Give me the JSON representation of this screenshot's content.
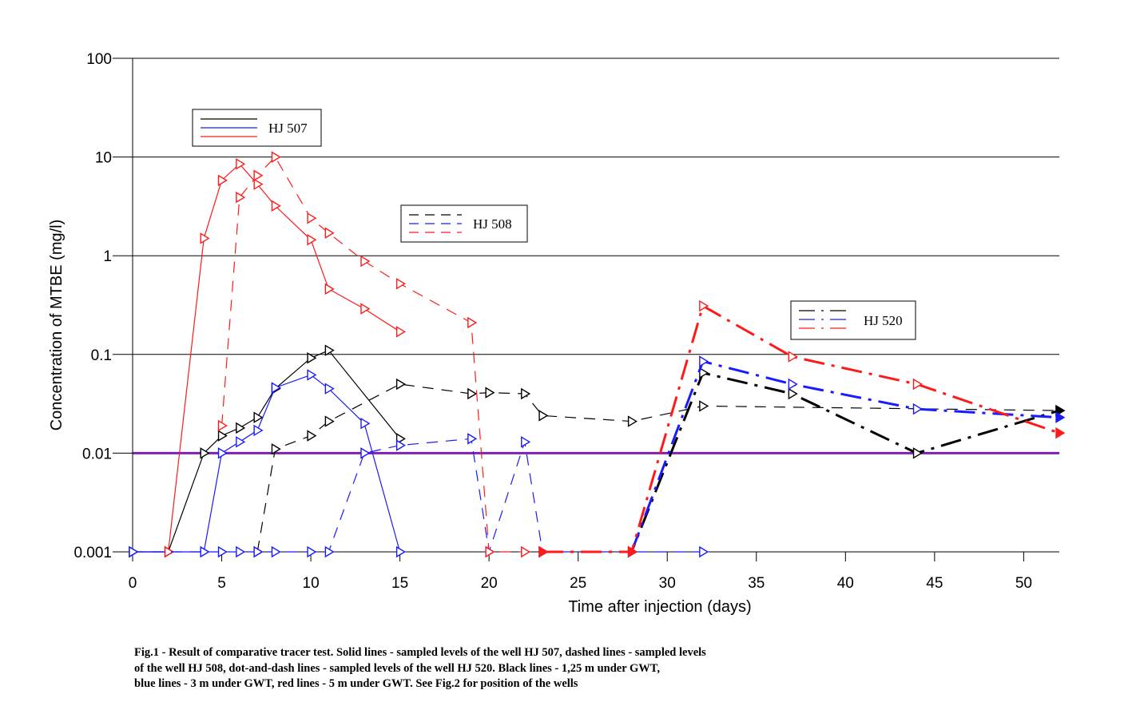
{
  "chart_data": {
    "type": "line",
    "ylabel": "Concentration of MTBE (mg/l)",
    "xlabel": "Time after injection (days)",
    "xlim": [
      0,
      52
    ],
    "ylim": [
      0.001,
      100
    ],
    "y_scale": "log",
    "x_ticks": [
      "0",
      "5",
      "10",
      "15",
      "20",
      "25",
      "30",
      "35",
      "40",
      "45",
      "50"
    ],
    "y_ticks": [
      "0.001",
      "0.01",
      "0.1",
      "1",
      "10",
      "100"
    ],
    "grid": "horizontal",
    "reference_line": {
      "y": 0.01,
      "color": "#7f1fb4"
    },
    "colors": {
      "black": "#000000",
      "blue": "#1a1aff",
      "red": "#ff1a1a",
      "purple": "#7f1fb4"
    },
    "legends": [
      {
        "label": "HJ 507"
      },
      {
        "label": "HJ 508"
      },
      {
        "label": "HJ 520"
      }
    ],
    "series": [
      {
        "well": "HJ 507",
        "level": "black",
        "style": "solid",
        "points": [
          [
            0,
            0.001
          ],
          [
            2,
            0.001
          ],
          [
            4,
            0.01
          ],
          [
            5,
            0.015
          ],
          [
            6,
            0.018
          ],
          [
            7,
            0.023
          ],
          [
            8,
            0.045
          ],
          [
            10,
            0.092
          ],
          [
            11,
            0.11
          ],
          [
            15,
            0.014
          ]
        ]
      },
      {
        "well": "HJ 507",
        "level": "blue",
        "style": "solid",
        "points": [
          [
            0,
            0.001
          ],
          [
            2,
            0.001
          ],
          [
            4,
            0.001
          ],
          [
            5,
            0.01
          ],
          [
            6,
            0.013
          ],
          [
            7,
            0.017
          ],
          [
            8,
            0.046
          ],
          [
            10,
            0.062
          ],
          [
            11,
            0.045
          ],
          [
            13,
            0.02
          ],
          [
            15,
            0.001
          ]
        ]
      },
      {
        "well": "HJ 507",
        "level": "red",
        "style": "solid",
        "points": [
          [
            2,
            0.001
          ],
          [
            4,
            1.5
          ],
          [
            5,
            5.8
          ],
          [
            6,
            8.5
          ],
          [
            7,
            5.3
          ],
          [
            8,
            3.2
          ],
          [
            10,
            1.45
          ],
          [
            11,
            0.46
          ],
          [
            13,
            0.29
          ],
          [
            15,
            0.17
          ]
        ]
      },
      {
        "well": "HJ 508",
        "level": "black",
        "style": "dashed",
        "points": [
          [
            7,
            0.001
          ],
          [
            8,
            0.011
          ],
          [
            10,
            0.015
          ],
          [
            11,
            0.021
          ],
          [
            15,
            0.05
          ],
          [
            19,
            0.04
          ],
          [
            20,
            0.041
          ],
          [
            22,
            0.04
          ],
          [
            23,
            0.024
          ],
          [
            28,
            0.021
          ],
          [
            32,
            0.03
          ],
          [
            52,
            0.027
          ]
        ]
      },
      {
        "well": "HJ 508",
        "level": "blue",
        "style": "dashed",
        "points": [
          [
            0,
            0.001
          ],
          [
            4,
            0.001
          ],
          [
            5,
            0.001
          ],
          [
            6,
            0.001
          ],
          [
            7,
            0.001
          ],
          [
            8,
            0.001
          ],
          [
            10,
            0.001
          ],
          [
            11,
            0.001
          ],
          [
            13,
            0.01
          ],
          [
            15,
            0.012
          ],
          [
            19,
            0.014
          ],
          [
            20,
            0.001
          ],
          [
            22,
            0.013
          ],
          [
            23,
            0.001
          ],
          [
            28,
            0.001
          ],
          [
            32,
            0.001
          ]
        ]
      },
      {
        "well": "HJ 508",
        "level": "red",
        "style": "dashed",
        "points": [
          [
            5,
            0.019
          ],
          [
            6,
            3.9
          ],
          [
            7,
            6.5
          ],
          [
            8,
            10
          ],
          [
            10,
            2.4
          ],
          [
            11,
            1.7
          ],
          [
            13,
            0.88
          ],
          [
            15,
            0.52
          ],
          [
            19,
            0.21
          ],
          [
            20,
            0.001
          ],
          [
            22,
            0.001
          ]
        ]
      },
      {
        "well": "HJ 520",
        "level": "black",
        "style": "dot-dash",
        "points": [
          [
            23,
            0.001
          ],
          [
            28,
            0.001
          ],
          [
            32,
            0.065
          ],
          [
            37,
            0.04
          ],
          [
            44,
            0.01
          ],
          [
            52,
            0.027
          ]
        ]
      },
      {
        "well": "HJ 520",
        "level": "blue",
        "style": "dot-dash",
        "points": [
          [
            28,
            0.001
          ],
          [
            32,
            0.085
          ],
          [
            37,
            0.05
          ],
          [
            44,
            0.028
          ],
          [
            52,
            0.023
          ]
        ]
      },
      {
        "well": "HJ 520",
        "level": "red",
        "style": "dot-dash",
        "points": [
          [
            23,
            0.001
          ],
          [
            28,
            0.001
          ],
          [
            32,
            0.31
          ],
          [
            37,
            0.095
          ],
          [
            44,
            0.05
          ],
          [
            52,
            0.016
          ]
        ]
      }
    ]
  },
  "caption": {
    "line1": "Fig.1 - Result of comparative tracer test. Solid lines - sampled levels of the well HJ 507, dashed lines - sampled levels",
    "line2": "of the well HJ 508, dot-and-dash lines - sampled levels of the well HJ 520. Black lines - 1,25 m under GWT,",
    "line3": "blue lines - 3 m under GWT, red lines - 5 m under GWT. See Fig.2 for position of the wells"
  }
}
